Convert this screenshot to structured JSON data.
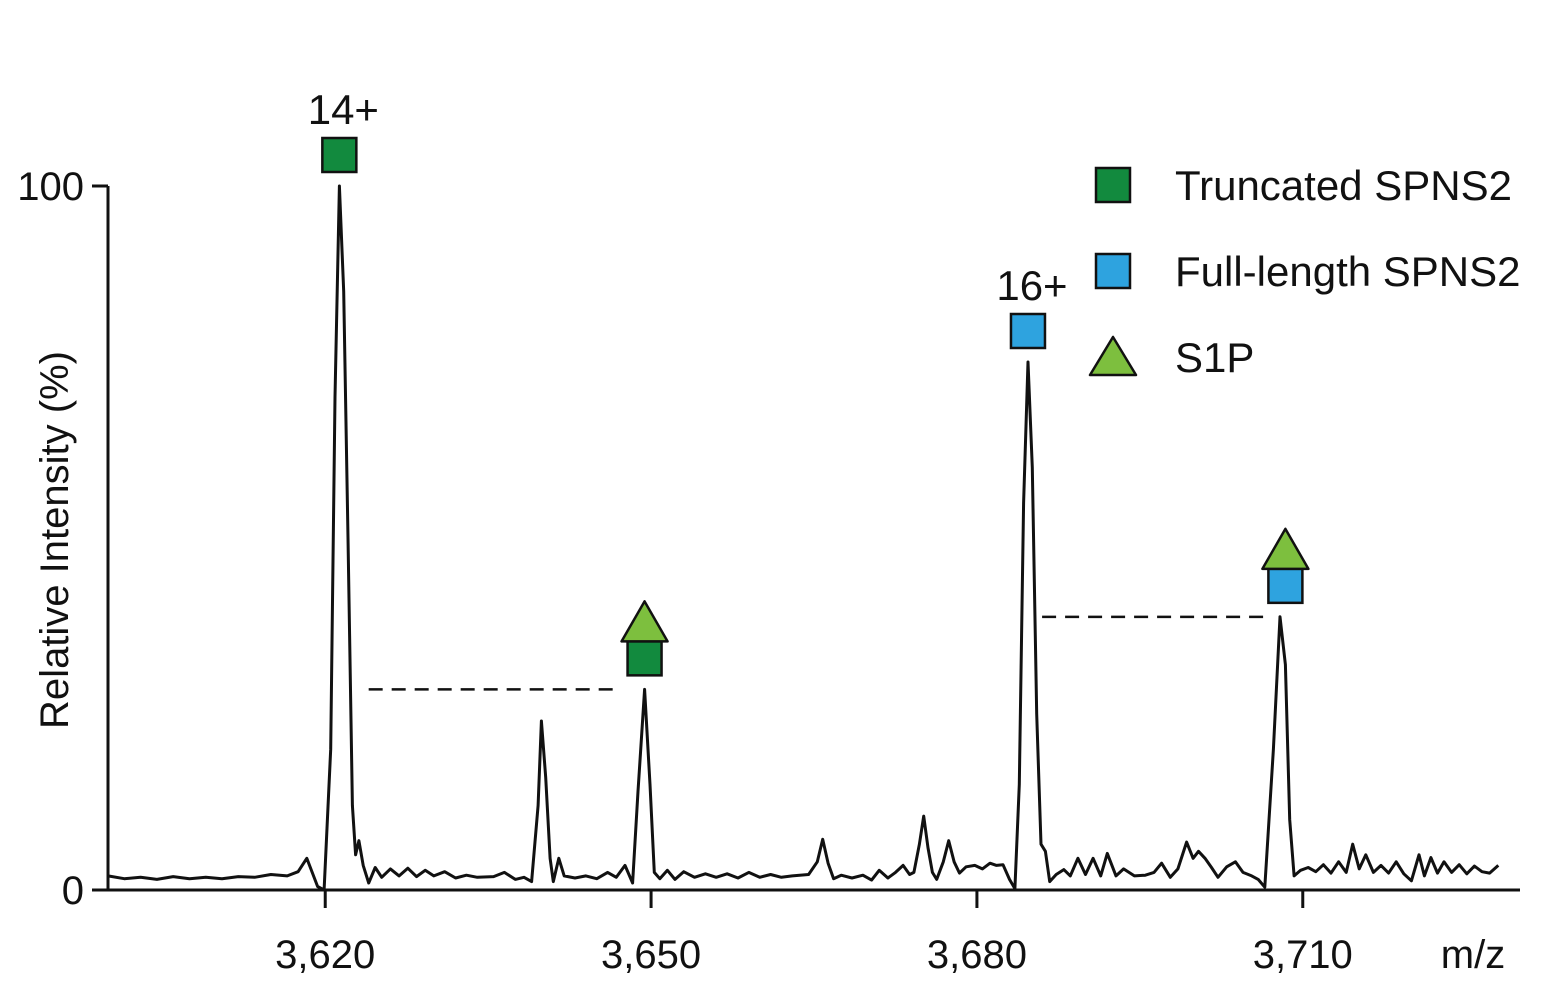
{
  "chart_data": {
    "type": "line",
    "title": "",
    "xlabel": "m/z",
    "ylabel": "Relative Intensity (%)",
    "xlim": [
      3600,
      3730
    ],
    "ylim": [
      0,
      100
    ],
    "x_ticks": [
      3620,
      3650,
      3680,
      3710
    ],
    "x_tick_labels": [
      "3,620",
      "3,650",
      "3,680",
      "3,710"
    ],
    "y_ticks": [
      0,
      100
    ],
    "y_tick_labels": [
      "0",
      "100"
    ],
    "grid": false,
    "legend_position": "top-right",
    "colors": {
      "truncated": "#128a3e",
      "full_length": "#2ea3df",
      "s1p": "#7dbf3e",
      "trace": "#111111"
    },
    "legend": [
      {
        "label": "Truncated SPNS2",
        "marker": "square",
        "color": "#128a3e"
      },
      {
        "label": "Full-length SPNS2",
        "marker": "square",
        "color": "#2ea3df"
      },
      {
        "label": "S1P",
        "marker": "triangle",
        "color": "#7dbf3e"
      }
    ],
    "peak_annotations": [
      {
        "x": 3621.3,
        "y": 100,
        "label": "14+",
        "markers": [
          "square-truncated"
        ]
      },
      {
        "x": 3649.4,
        "y": 28.5,
        "label": "",
        "markers": [
          "triangle-s1p",
          "square-truncated"
        ]
      },
      {
        "x": 3684.7,
        "y": 75,
        "label": "16+",
        "markers": [
          "square-full"
        ]
      },
      {
        "x": 3708.4,
        "y": 38.8,
        "label": "",
        "markers": [
          "triangle-s1p",
          "square-full"
        ]
      }
    ],
    "dashed_lines": [
      {
        "x0": 3624,
        "x1": 3647,
        "y": 28.5
      },
      {
        "x0": 3686,
        "x1": 3706.5,
        "y": 38.8
      }
    ],
    "series": [
      {
        "values": [
          [
            3600.0,
            2.0
          ],
          [
            3601.5,
            1.6
          ],
          [
            3603.0,
            1.8
          ],
          [
            3604.5,
            1.5
          ],
          [
            3606.0,
            1.9
          ],
          [
            3607.5,
            1.6
          ],
          [
            3609.0,
            1.8
          ],
          [
            3610.5,
            1.6
          ],
          [
            3612.0,
            1.9
          ],
          [
            3613.5,
            1.8
          ],
          [
            3615.0,
            2.2
          ],
          [
            3616.5,
            2.0
          ],
          [
            3617.5,
            2.6
          ],
          [
            3618.3,
            4.5
          ],
          [
            3618.8,
            2.5
          ],
          [
            3619.3,
            0.5
          ],
          [
            3619.9,
            0.0
          ],
          [
            3620.5,
            20.0
          ],
          [
            3620.9,
            70.0
          ],
          [
            3621.3,
            100.0
          ],
          [
            3621.7,
            85.0
          ],
          [
            3622.1,
            50.0
          ],
          [
            3622.5,
            12.0
          ],
          [
            3622.8,
            5.0
          ],
          [
            3623.1,
            7.0
          ],
          [
            3623.5,
            3.5
          ],
          [
            3624.0,
            1.0
          ],
          [
            3624.6,
            3.2
          ],
          [
            3625.2,
            1.8
          ],
          [
            3626.0,
            3.0
          ],
          [
            3626.8,
            2.0
          ],
          [
            3627.6,
            3.1
          ],
          [
            3628.4,
            1.9
          ],
          [
            3629.2,
            2.8
          ],
          [
            3630.0,
            2.0
          ],
          [
            3631.0,
            2.6
          ],
          [
            3632.0,
            1.7
          ],
          [
            3633.0,
            2.1
          ],
          [
            3634.0,
            1.8
          ],
          [
            3635.5,
            1.9
          ],
          [
            3636.5,
            2.5
          ],
          [
            3637.5,
            1.5
          ],
          [
            3638.3,
            1.8
          ],
          [
            3639.0,
            1.2
          ],
          [
            3639.6,
            12.0
          ],
          [
            3639.9,
            24.0
          ],
          [
            3640.3,
            16.0
          ],
          [
            3640.7,
            4.5
          ],
          [
            3641.0,
            1.2
          ],
          [
            3641.5,
            4.5
          ],
          [
            3642.0,
            2.0
          ],
          [
            3643.0,
            1.7
          ],
          [
            3644.0,
            2.0
          ],
          [
            3645.0,
            1.6
          ],
          [
            3646.0,
            2.5
          ],
          [
            3646.8,
            1.8
          ],
          [
            3647.6,
            3.5
          ],
          [
            3648.3,
            1.0
          ],
          [
            3648.8,
            14.0
          ],
          [
            3649.4,
            28.5
          ],
          [
            3649.9,
            15.0
          ],
          [
            3650.3,
            2.5
          ],
          [
            3650.8,
            1.6
          ],
          [
            3651.5,
            2.8
          ],
          [
            3652.2,
            1.5
          ],
          [
            3653.0,
            2.6
          ],
          [
            3654.0,
            1.8
          ],
          [
            3655.0,
            2.3
          ],
          [
            3656.0,
            1.8
          ],
          [
            3657.0,
            2.3
          ],
          [
            3658.0,
            1.7
          ],
          [
            3659.0,
            2.5
          ],
          [
            3660.0,
            1.8
          ],
          [
            3661.0,
            2.2
          ],
          [
            3662.0,
            1.8
          ],
          [
            3663.0,
            2.0
          ],
          [
            3664.5,
            2.2
          ],
          [
            3665.3,
            4.0
          ],
          [
            3665.8,
            7.2
          ],
          [
            3666.3,
            3.8
          ],
          [
            3666.8,
            1.6
          ],
          [
            3667.5,
            2.1
          ],
          [
            3668.5,
            1.7
          ],
          [
            3669.5,
            2.1
          ],
          [
            3670.3,
            1.4
          ],
          [
            3671.0,
            2.8
          ],
          [
            3671.8,
            1.7
          ],
          [
            3672.5,
            2.5
          ],
          [
            3673.2,
            3.5
          ],
          [
            3673.8,
            2.2
          ],
          [
            3674.2,
            2.5
          ],
          [
            3674.7,
            6.5
          ],
          [
            3675.1,
            10.5
          ],
          [
            3675.5,
            6.0
          ],
          [
            3675.9,
            2.5
          ],
          [
            3676.3,
            1.5
          ],
          [
            3676.9,
            4.0
          ],
          [
            3677.4,
            7.0
          ],
          [
            3677.9,
            4.0
          ],
          [
            3678.4,
            2.4
          ],
          [
            3679.0,
            3.3
          ],
          [
            3679.8,
            3.5
          ],
          [
            3680.5,
            3.0
          ],
          [
            3681.2,
            3.8
          ],
          [
            3681.8,
            3.5
          ],
          [
            3682.4,
            3.6
          ],
          [
            3683.0,
            1.5
          ],
          [
            3683.5,
            0.2
          ],
          [
            3683.9,
            15.0
          ],
          [
            3684.3,
            55.0
          ],
          [
            3684.7,
            75.0
          ],
          [
            3685.1,
            60.0
          ],
          [
            3685.5,
            25.0
          ],
          [
            3685.9,
            6.5
          ],
          [
            3686.3,
            5.5
          ],
          [
            3686.7,
            1.2
          ],
          [
            3687.3,
            2.2
          ],
          [
            3688.0,
            2.9
          ],
          [
            3688.6,
            2.0
          ],
          [
            3689.3,
            4.5
          ],
          [
            3690.0,
            2.2
          ],
          [
            3690.7,
            4.5
          ],
          [
            3691.4,
            2.0
          ],
          [
            3692.0,
            5.2
          ],
          [
            3692.8,
            2.0
          ],
          [
            3693.5,
            3.0
          ],
          [
            3694.5,
            2.0
          ],
          [
            3695.5,
            2.1
          ],
          [
            3696.3,
            2.5
          ],
          [
            3697.0,
            3.8
          ],
          [
            3697.8,
            1.8
          ],
          [
            3698.5,
            3.0
          ],
          [
            3699.3,
            6.8
          ],
          [
            3699.9,
            4.5
          ],
          [
            3700.4,
            5.5
          ],
          [
            3701.0,
            4.5
          ],
          [
            3701.6,
            3.2
          ],
          [
            3702.2,
            1.8
          ],
          [
            3703.0,
            3.3
          ],
          [
            3703.8,
            4.0
          ],
          [
            3704.5,
            2.5
          ],
          [
            3705.3,
            2.0
          ],
          [
            3705.9,
            1.5
          ],
          [
            3706.5,
            0.4
          ],
          [
            3707.3,
            20.0
          ],
          [
            3707.9,
            38.8
          ],
          [
            3708.4,
            32.0
          ],
          [
            3708.8,
            10.0
          ],
          [
            3709.2,
            2.0
          ],
          [
            3709.8,
            2.8
          ],
          [
            3710.5,
            3.2
          ],
          [
            3711.2,
            2.6
          ],
          [
            3711.9,
            3.6
          ],
          [
            3712.6,
            2.4
          ],
          [
            3713.3,
            4.0
          ],
          [
            3714.0,
            2.5
          ],
          [
            3714.6,
            6.5
          ],
          [
            3715.2,
            3.0
          ],
          [
            3715.8,
            5.0
          ],
          [
            3716.5,
            2.5
          ],
          [
            3717.2,
            3.5
          ],
          [
            3717.9,
            2.4
          ],
          [
            3718.6,
            4.0
          ],
          [
            3719.3,
            2.3
          ],
          [
            3720.0,
            1.3
          ],
          [
            3720.7,
            5.0
          ],
          [
            3721.2,
            2.0
          ],
          [
            3721.8,
            4.6
          ],
          [
            3722.4,
            2.4
          ],
          [
            3723.0,
            4.0
          ],
          [
            3723.7,
            2.5
          ],
          [
            3724.4,
            3.6
          ],
          [
            3725.1,
            2.3
          ],
          [
            3725.8,
            3.4
          ],
          [
            3726.5,
            2.6
          ],
          [
            3727.2,
            2.4
          ],
          [
            3728.0,
            3.5
          ]
        ]
      }
    ]
  }
}
